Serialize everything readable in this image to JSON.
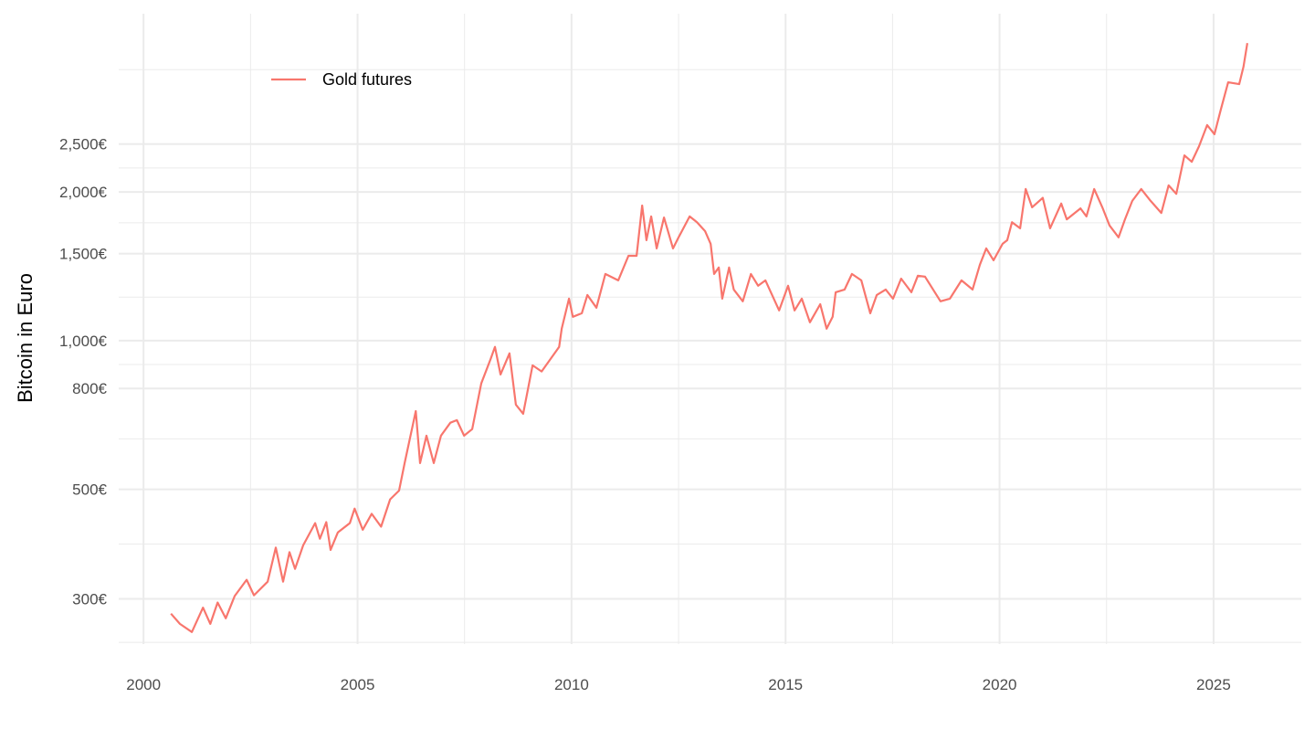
{
  "chart_data": {
    "type": "line",
    "title": "",
    "xlabel": "",
    "ylabel": "Bitcoin in Euro",
    "y_scale": "log10",
    "xlim": [
      1999.42,
      2027.05
    ],
    "ylim": [
      243,
      4590
    ],
    "grid": true,
    "legend_position": "top-left",
    "x_ticks": [
      2000,
      2005,
      2010,
      2015,
      2020,
      2025
    ],
    "x_tick_labels": [
      "2000",
      "2005",
      "2010",
      "2015",
      "2020",
      "2025"
    ],
    "y_ticks": [
      300,
      500,
      800,
      1000,
      1500,
      2000,
      2500
    ],
    "y_tick_labels": [
      "300€",
      "500€",
      "800€",
      "1,000€",
      "1,500€",
      "2,000€",
      "2,500€"
    ],
    "series": [
      {
        "name": "Gold futures",
        "color": "#F8766D",
        "x": [
          2000.64,
          2000.85,
          2001.13,
          2001.39,
          2001.56,
          2001.73,
          2001.92,
          2002.13,
          2002.41,
          2002.58,
          2002.9,
          2003.09,
          2003.26,
          2003.41,
          2003.54,
          2003.73,
          2004.01,
          2004.12,
          2004.27,
          2004.37,
          2004.54,
          2004.82,
          2004.93,
          2005.12,
          2005.33,
          2005.55,
          2005.76,
          2005.97,
          2006.1,
          2006.36,
          2006.46,
          2006.61,
          2006.78,
          2006.95,
          2007.17,
          2007.32,
          2007.49,
          2007.68,
          2007.89,
          2008.11,
          2008.21,
          2008.34,
          2008.55,
          2008.7,
          2008.87,
          2009.09,
          2009.3,
          2009.51,
          2009.71,
          2009.77,
          2009.94,
          2010.03,
          2010.24,
          2010.37,
          2010.58,
          2010.79,
          2011.09,
          2011.33,
          2011.52,
          2011.65,
          2011.75,
          2011.86,
          2011.99,
          2012.16,
          2012.37,
          2012.5,
          2012.76,
          2012.93,
          2013.12,
          2013.25,
          2013.33,
          2013.44,
          2013.52,
          2013.68,
          2013.79,
          2014.0,
          2014.19,
          2014.36,
          2014.53,
          2014.85,
          2015.06,
          2015.21,
          2015.38,
          2015.57,
          2015.81,
          2015.96,
          2016.1,
          2016.17,
          2016.38,
          2016.55,
          2016.77,
          2016.98,
          2017.13,
          2017.34,
          2017.51,
          2017.7,
          2017.94,
          2018.09,
          2018.26,
          2018.62,
          2018.84,
          2019.11,
          2019.37,
          2019.54,
          2019.69,
          2019.86,
          2020.07,
          2020.18,
          2020.29,
          2020.48,
          2020.61,
          2020.76,
          2021.01,
          2021.18,
          2021.44,
          2021.57,
          2021.89,
          2022.03,
          2022.21,
          2022.4,
          2022.57,
          2022.78,
          2022.93,
          2023.1,
          2023.31,
          2023.53,
          2023.78,
          2023.95,
          2024.13,
          2024.32,
          2024.49,
          2024.66,
          2024.85,
          2025.02,
          2025.17,
          2025.34,
          2025.6,
          2025.7,
          2025.79
        ],
        "values": [
          280,
          267,
          257,
          288,
          267,
          295,
          274,
          304,
          328,
          305,
          325,
          381,
          325,
          373,
          345,
          385,
          427,
          397,
          429,
          377,
          409,
          427,
          457,
          414,
          446,
          420,
          477,
          497,
          565,
          720,
          565,
          642,
          565,
          642,
          682,
          690,
          642,
          662,
          819,
          918,
          971,
          854,
          942,
          742,
          711,
          891,
          866,
          918,
          971,
          1057,
          1216,
          1117,
          1136,
          1237,
          1166,
          1364,
          1324,
          1485,
          1485,
          1877,
          1597,
          1784,
          1537,
          1775,
          1537,
          1618,
          1784,
          1737,
          1666,
          1570,
          1364,
          1406,
          1216,
          1406,
          1269,
          1201,
          1364,
          1291,
          1324,
          1151,
          1291,
          1151,
          1216,
          1089,
          1185,
          1057,
          1117,
          1253,
          1269,
          1364,
          1324,
          1136,
          1237,
          1269,
          1216,
          1335,
          1253,
          1353,
          1347,
          1201,
          1216,
          1324,
          1269,
          1424,
          1537,
          1454,
          1570,
          1597,
          1737,
          1688,
          2027,
          1862,
          1945,
          1688,
          1894,
          1760,
          1852,
          1784,
          2027,
          1862,
          1710,
          1618,
          1760,
          1918,
          2027,
          1918,
          1813,
          2062,
          1982,
          2371,
          2301,
          2474,
          2731,
          2617,
          2938,
          3334,
          3306,
          3585,
          4002
        ]
      }
    ]
  }
}
